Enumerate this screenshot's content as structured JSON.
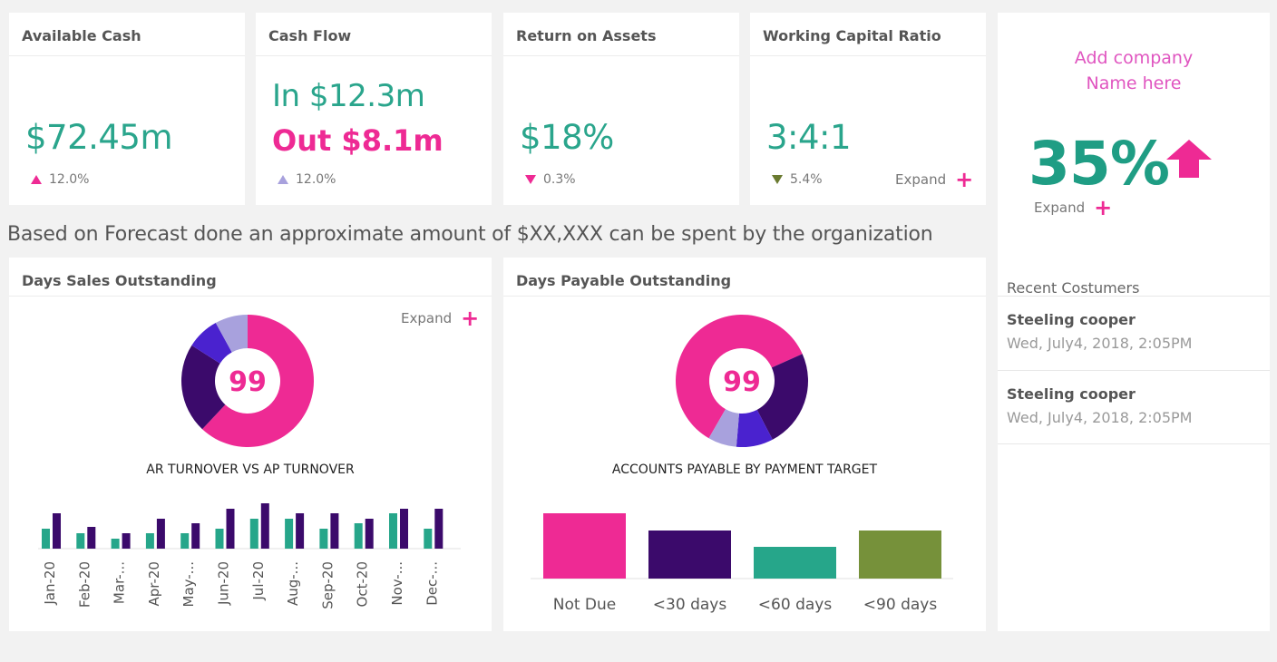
{
  "kpis": {
    "available_cash": {
      "title": "Available Cash",
      "value": "$72.45m",
      "delta": "12.0%"
    },
    "cash_flow": {
      "title": "Cash Flow",
      "in_value": "In $12.3m",
      "out_value": "Out $8.1m",
      "delta": "12.0%"
    },
    "return_on_assets": {
      "title": "Return on Assets",
      "value": "$18%",
      "delta": "0.3%"
    },
    "working_capital": {
      "title": "Working Capital Ratio",
      "value": "3:4:1",
      "delta": "5.4%",
      "expand_label": "Expand"
    }
  },
  "forecast_text": "Based on Forecast done an approximate amount of $XX,XXX can be spent by the organization",
  "dso": {
    "title": "Days Sales Outstanding",
    "expand_label": "Expand",
    "donut_center": "99",
    "bar_chart_title": "AR TURNOVER VS AP TURNOVER"
  },
  "dpo": {
    "title": "Days Payable Outstanding",
    "donut_center": "99",
    "bar_chart_title": "ACCOUNTS PAYABLE BY PAYMENT TARGET"
  },
  "sidebar": {
    "company_line1": "Add company",
    "company_line2": "Name here",
    "big_value": "35%",
    "expand_label": "Expand",
    "recent_title": "Recent Costumers",
    "customers": [
      {
        "name": "Steeling cooper",
        "date": "Wed, July4, 2018, 2:05PM"
      },
      {
        "name": "Steeling cooper",
        "date": "Wed, July4, 2018, 2:05PM"
      }
    ]
  },
  "colors": {
    "pink": "#ee2a94",
    "teal": "#26a68a",
    "dark_purple": "#3b0a6b",
    "blue_violet": "#4a22cf",
    "lavender": "#a8a1dd",
    "olive": "#76913a"
  },
  "chart_data": [
    {
      "type": "pie",
      "title": "",
      "center_label": "99",
      "slices": [
        {
          "value": 62,
          "color": "#ee2a94"
        },
        {
          "value": 22,
          "color": "#3b0a6b"
        },
        {
          "value": 8,
          "color": "#4a22cf"
        },
        {
          "value": 8,
          "color": "#a8a1dd"
        }
      ]
    },
    {
      "type": "bar",
      "title": "AR TURNOVER VS AP TURNOVER",
      "categories": [
        "Jan-20",
        "Feb-20",
        "Mar-...",
        "Apr-20",
        "May-...",
        "Jun-20",
        "Jul-20",
        "Aug-...",
        "Sep-20",
        "Oct-20",
        "Nov-...",
        "Dec-..."
      ],
      "series": [
        {
          "color": "#26a68a",
          "values": [
            22,
            17,
            11,
            17,
            17,
            22,
            33,
            33,
            22,
            28,
            39,
            22
          ]
        },
        {
          "color": "#3b0a6b",
          "values": [
            39,
            24,
            17,
            33,
            28,
            44,
            50,
            39,
            39,
            33,
            44,
            44
          ]
        }
      ],
      "ylim": [
        0,
        55
      ]
    },
    {
      "type": "pie",
      "title": "",
      "center_label": "99",
      "slices": [
        {
          "value": 60,
          "color": "#ee2a94"
        },
        {
          "value": 24,
          "color": "#3b0a6b"
        },
        {
          "value": 9,
          "color": "#4a22cf"
        },
        {
          "value": 7,
          "color": "#a8a1dd"
        }
      ]
    },
    {
      "type": "bar",
      "title": "ACCOUNTS PAYABLE BY PAYMENT TARGET",
      "categories": [
        "Not Due",
        "<30 days",
        "<60  days",
        "<90 days"
      ],
      "values": [
        72,
        53,
        35,
        53
      ],
      "colors": [
        "#ee2a94",
        "#3b0a6b",
        "#26a68a",
        "#76913a"
      ],
      "ylim": [
        0,
        80
      ]
    }
  ]
}
